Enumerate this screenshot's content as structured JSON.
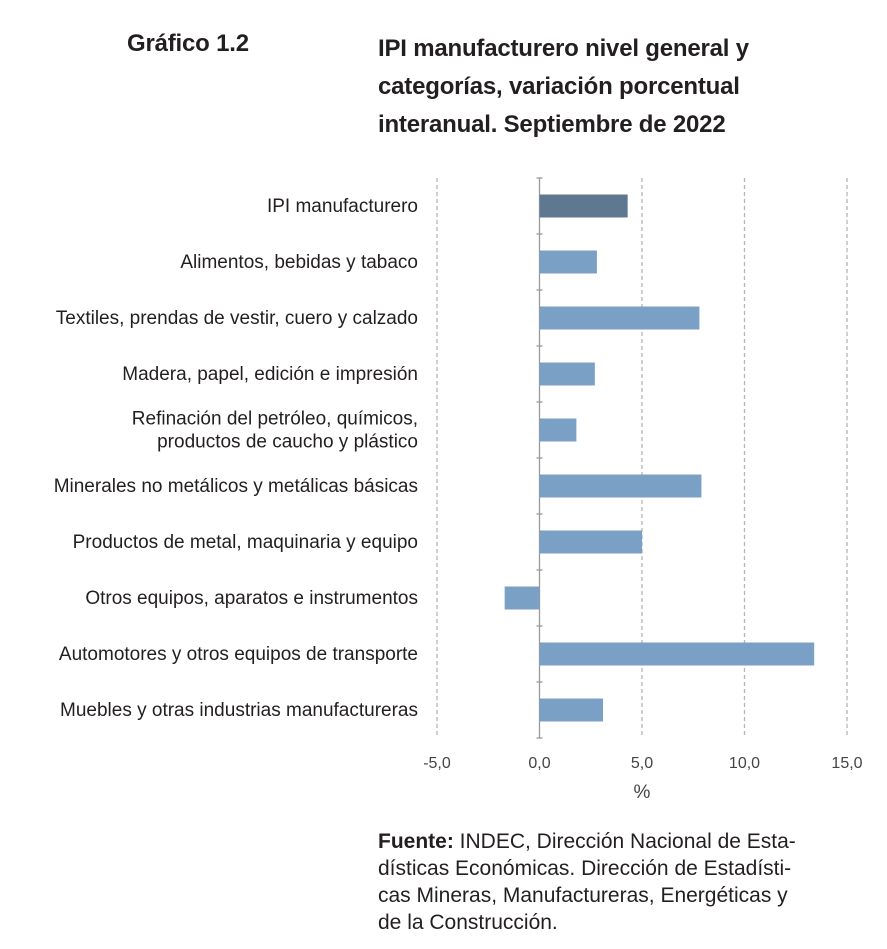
{
  "header": {
    "figure_label": "Gráfico 1.2",
    "title_lines": [
      "IPI manufacturero nivel general y",
      "categorías, variación porcentual",
      "interanual. Septiembre de 2022"
    ]
  },
  "chart_data": {
    "type": "bar",
    "orientation": "horizontal",
    "title": "IPI manufacturero nivel general y categorías, variación porcentual interanual. Septiembre de 2022",
    "categories": [
      [
        "IPI manufacturero"
      ],
      [
        "Alimentos, bebidas y tabaco"
      ],
      [
        "Textiles, prendas de vestir, cuero y calzado"
      ],
      [
        "Madera, papel, edición e impresión"
      ],
      [
        "Refinación del petróleo, químicos,",
        "productos de caucho y plástico"
      ],
      [
        "Minerales no metálicos y metálicas básicas"
      ],
      [
        "Productos de metal, maquinaria y equipo"
      ],
      [
        "Otros equipos, aparatos e instrumentos"
      ],
      [
        "Automotores y otros equipos de transporte"
      ],
      [
        "Muebles y otras industrias manufactureras"
      ]
    ],
    "values": [
      4.3,
      2.8,
      7.8,
      2.7,
      1.8,
      7.9,
      5.0,
      -1.7,
      13.4,
      3.1
    ],
    "xlabel": "%",
    "xlim": [
      -5,
      15
    ],
    "xticks": [
      -5,
      0,
      5,
      10,
      15
    ],
    "xtick_labels": [
      "-5,0",
      "0,0",
      "5,0",
      "10,0",
      "15,0"
    ],
    "grid": "vertical dashed",
    "colors": {
      "total": "#5f7891",
      "categories": "#7aa1c5",
      "grid": "#b5b5b5",
      "axis": "#9a9a9a"
    }
  },
  "source": {
    "label": "Fuente:",
    "text": " INDEC, Dirección Nacional de Estadísticas Económicas. Dirección de Estadísticas Mineras, Manufactureras, Energéticas y de la Construcción.",
    "lines": [
      " INDEC, Dirección Nacional de Esta-",
      "dísticas Económicas. Dirección de Estadísti-",
      "cas Mineras, Manufactureras, Energéticas y",
      "de la Construcción."
    ]
  }
}
